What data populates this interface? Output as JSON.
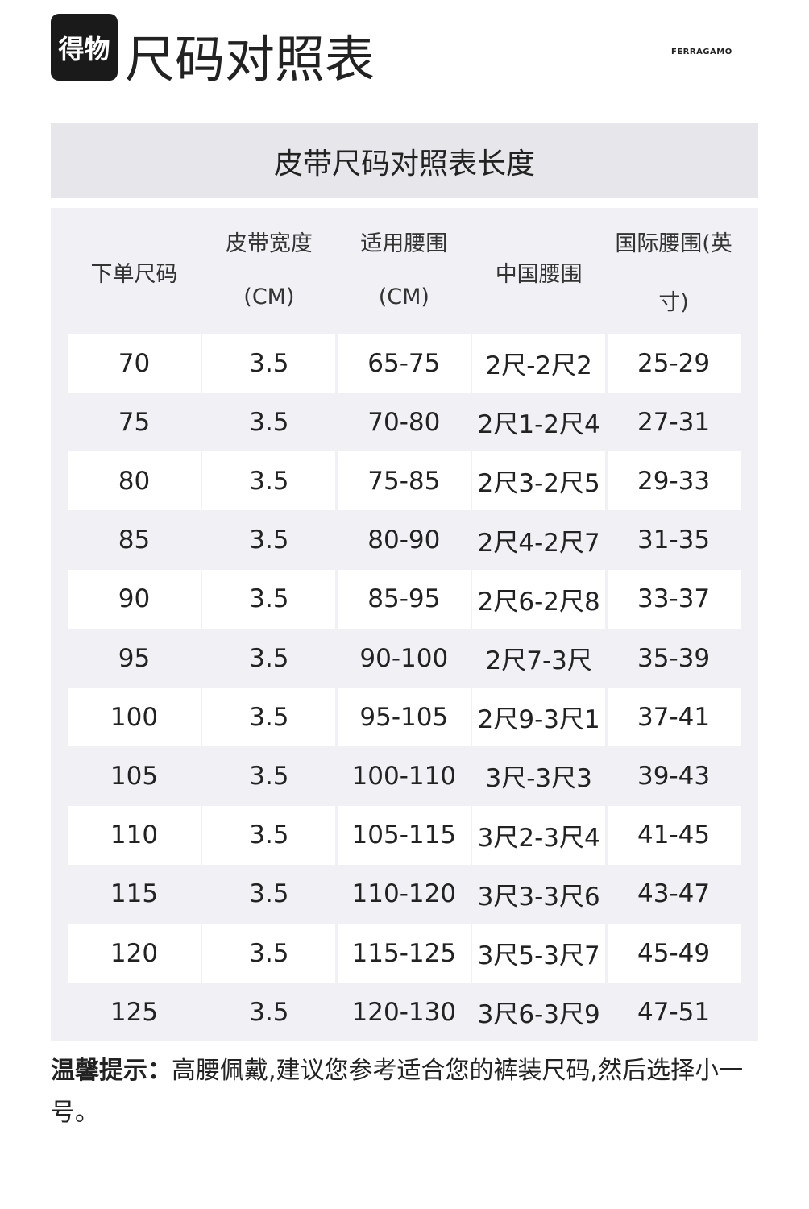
{
  "header": {
    "logo": "得物",
    "title": "尺码对照表",
    "brand": "FERRAGAMO"
  },
  "table": {
    "caption": "皮带尺码对照表长度",
    "columns": [
      [
        "下单尺码"
      ],
      [
        "皮带宽度",
        "(CM)"
      ],
      [
        "适用腰围",
        "(CM)"
      ],
      [
        "中国腰围"
      ],
      [
        "国际腰围(英",
        "寸)"
      ]
    ],
    "rows": [
      [
        "70",
        "3.5",
        "65-75",
        "2尺-2尺2",
        "25-29"
      ],
      [
        "75",
        "3.5",
        "70-80",
        "2尺1-2尺4",
        "27-31"
      ],
      [
        "80",
        "3.5",
        "75-85",
        "2尺3-2尺5",
        "29-33"
      ],
      [
        "85",
        "3.5",
        "80-90",
        "2尺4-2尺7",
        "31-35"
      ],
      [
        "90",
        "3.5",
        "85-95",
        "2尺6-2尺8",
        "33-37"
      ],
      [
        "95",
        "3.5",
        "90-100",
        "2尺7-3尺",
        "35-39"
      ],
      [
        "100",
        "3.5",
        "95-105",
        "2尺9-3尺1",
        "37-41"
      ],
      [
        "105",
        "3.5",
        "100-110",
        "3尺-3尺3",
        "39-43"
      ],
      [
        "110",
        "3.5",
        "105-115",
        "3尺2-3尺4",
        "41-45"
      ],
      [
        "115",
        "3.5",
        "110-120",
        "3尺3-3尺6",
        "43-47"
      ],
      [
        "120",
        "3.5",
        "115-125",
        "3尺5-3尺7",
        "45-49"
      ],
      [
        "125",
        "3.5",
        "120-130",
        "3尺6-3尺9",
        "47-51"
      ]
    ]
  },
  "note": {
    "label": "温馨提示：",
    "text": "高腰佩戴,建议您参考适合您的裤装尺码,然后选择小一号。"
  }
}
